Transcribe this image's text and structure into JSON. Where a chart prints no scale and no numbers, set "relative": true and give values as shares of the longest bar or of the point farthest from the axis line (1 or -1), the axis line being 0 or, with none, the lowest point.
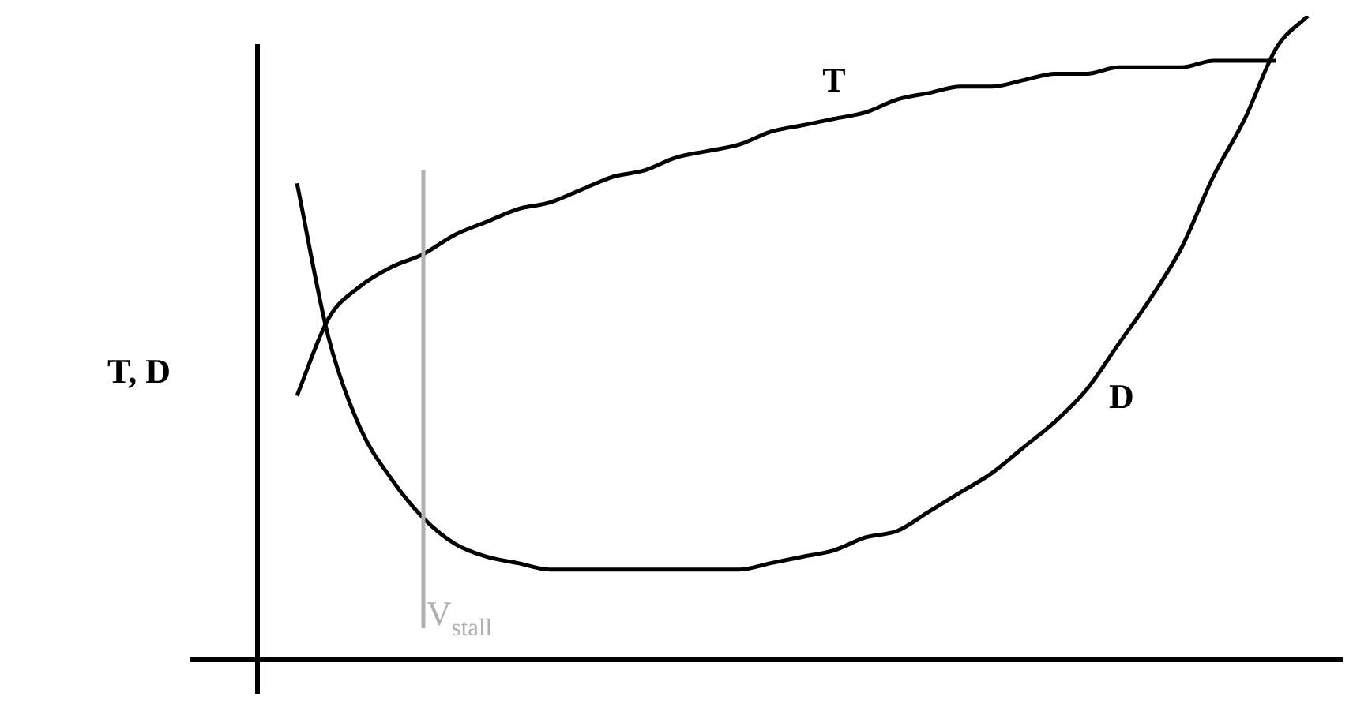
{
  "chart_data": {
    "type": "line",
    "relative": true,
    "ylabel": "T, D",
    "legend": false,
    "marker": "none",
    "line_style": "solid",
    "categories": [
      null,
      null,
      null,
      null,
      null,
      null,
      null,
      null,
      null,
      null,
      null,
      null,
      null,
      null,
      null,
      null,
      null,
      null,
      null,
      null,
      null,
      null,
      null,
      null,
      null,
      null,
      null,
      null,
      null,
      null,
      null,
      null,
      null,
      null
    ],
    "series": [
      {
        "name": "T",
        "color": "#000000",
        "values": [
          0.41,
          0.53,
          0.58,
          0.61,
          0.63,
          0.66,
          0.68,
          0.7,
          0.71,
          0.73,
          0.75,
          0.76,
          0.78,
          0.79,
          0.8,
          0.82,
          0.83,
          0.84,
          0.85,
          0.87,
          0.88,
          0.89,
          0.89,
          0.9,
          0.91,
          0.91,
          0.92,
          0.92,
          0.92,
          0.93,
          0.93,
          0.93,
          null,
          null
        ]
      },
      {
        "name": "D",
        "color": "#000000",
        "values": [
          0.74,
          0.5,
          0.36,
          0.28,
          0.22,
          0.18,
          0.16,
          0.15,
          0.14,
          0.14,
          0.14,
          0.14,
          0.14,
          0.14,
          0.14,
          0.15,
          0.16,
          0.17,
          0.19,
          0.2,
          0.23,
          0.26,
          0.29,
          0.33,
          0.37,
          0.42,
          0.49,
          0.56,
          0.64,
          0.75,
          0.84,
          0.95,
          1.0,
          null
        ]
      }
    ],
    "annotations": [
      "V$_{stall}$"
    ]
  }
}
